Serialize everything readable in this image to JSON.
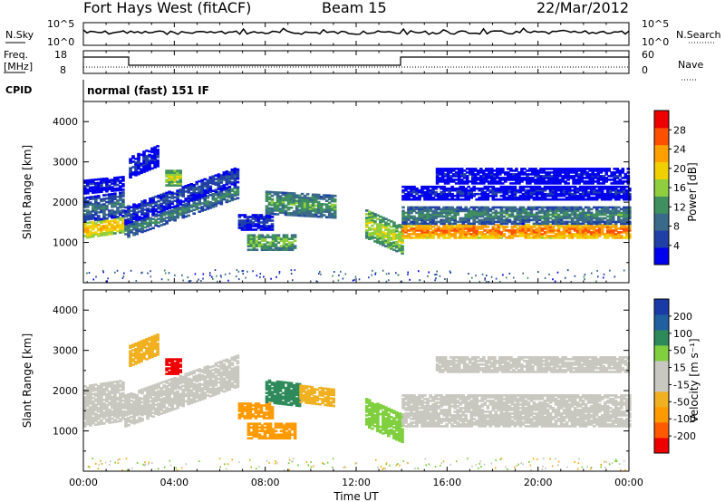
{
  "header": {
    "station": "Fort Hays West (fitACF)",
    "beam": "Beam 15",
    "date": "22/Mar/2012"
  },
  "noise_panel": {
    "left_label": "N.Sky",
    "right_label": "N.Search",
    "tick_top": "10^5",
    "tick_bottom": "10^0"
  },
  "freq_panel": {
    "left_label_line1": "Freq.",
    "left_label_line2": "[MHz]",
    "left_ticks": [
      "18",
      "8"
    ],
    "right_label": "Nave",
    "right_ticks": [
      "60",
      "0"
    ]
  },
  "cpid": {
    "label": "CPID",
    "value": "normal (fast) 151 IF"
  },
  "colors": {
    "power": [
      "#0000ee",
      "#2040a8",
      "#3a6a8a",
      "#3f8f5f",
      "#8fcf3f",
      "#f0d000",
      "#ffa000",
      "#ff5000",
      "#ee0000"
    ],
    "velocity": [
      "#ee0000",
      "#ff5a00",
      "#ff9a00",
      "#f0b020",
      "#c8c8c0",
      "#c8c8c0",
      "#7fcf3f",
      "#2e8a5a",
      "#2060a0",
      "#1a3aa8"
    ]
  },
  "chart_data": [
    {
      "type": "heatmap",
      "name_panel": "power",
      "ylabel": "Slant Range [km]",
      "ylim": [
        0,
        4500
      ],
      "yticks": [
        "1000",
        "2000",
        "3000",
        "4000"
      ],
      "xlim_hours": [
        0,
        24
      ],
      "colorbar_label": "Power [dB]",
      "colorbar_ticks": [
        "4",
        "8",
        "12",
        "16",
        "20",
        "24",
        "28"
      ],
      "colorbar_range": [
        0,
        32
      ],
      "bands": [
        {
          "t0": 0.0,
          "t1": 1.8,
          "r_lo": 1100,
          "r_hi": 1500,
          "rise": 150,
          "level": 22
        },
        {
          "t0": 0.0,
          "t1": 1.8,
          "r_lo": 1500,
          "r_hi": 2100,
          "rise": 150,
          "level": 10
        },
        {
          "t0": 0.0,
          "t1": 1.8,
          "r_lo": 2200,
          "r_hi": 2550,
          "rise": 100,
          "level": 4
        },
        {
          "t0": 1.8,
          "t1": 6.8,
          "r_lo": 1100,
          "r_hi": 1450,
          "rise": 1000,
          "level": 12
        },
        {
          "t0": 1.8,
          "t1": 6.8,
          "r_lo": 1450,
          "r_hi": 1900,
          "rise": 1000,
          "level": 7
        },
        {
          "t0": 2.0,
          "t1": 3.3,
          "r_lo": 2600,
          "r_hi": 3100,
          "rise": 300,
          "level": 5
        },
        {
          "t0": 3.6,
          "t1": 4.3,
          "r_lo": 2400,
          "r_hi": 2800,
          "rise": 0,
          "level": 18
        },
        {
          "t0": 7.2,
          "t1": 9.3,
          "r_lo": 800,
          "r_hi": 1200,
          "rise": 0,
          "level": 16
        },
        {
          "t0": 6.8,
          "t1": 8.3,
          "r_lo": 1300,
          "r_hi": 1700,
          "rise": 0,
          "level": 6
        },
        {
          "t0": 8.0,
          "t1": 11.0,
          "r_lo": 1700,
          "r_hi": 2250,
          "rise": -100,
          "level": 14
        },
        {
          "t0": 12.4,
          "t1": 14.0,
          "r_lo": 1100,
          "r_hi": 1800,
          "rise": -400,
          "level": 18
        },
        {
          "t0": 14.0,
          "t1": 24.0,
          "r_lo": 1100,
          "r_hi": 1450,
          "rise": 0,
          "level": 26
        },
        {
          "t0": 14.0,
          "t1": 24.0,
          "r_lo": 1450,
          "r_hi": 1900,
          "rise": 0,
          "level": 12
        },
        {
          "t0": 14.0,
          "t1": 24.0,
          "r_lo": 2050,
          "r_hi": 2400,
          "rise": 0,
          "level": 4
        },
        {
          "t0": 15.5,
          "t1": 24.0,
          "r_lo": 2450,
          "r_hi": 2850,
          "rise": 0,
          "level": 3
        }
      ]
    },
    {
      "type": "heatmap",
      "name_panel": "velocity",
      "ylabel": "Slant Range [km]",
      "ylim": [
        0,
        4500
      ],
      "yticks": [
        "1000",
        "2000",
        "3000",
        "4000"
      ],
      "xlim_hours": [
        0,
        24
      ],
      "xticks": [
        "00:00",
        "04:00",
        "08:00",
        "12:00",
        "16:00",
        "20:00",
        "00:00"
      ],
      "xlabel": "Time UT",
      "colorbar_label": "Velocity [m s⁻¹]",
      "colorbar_ticks": [
        "-200",
        "-100",
        "-50",
        "-15",
        "15",
        "50",
        "100",
        "200"
      ],
      "bands": [
        {
          "t0": 0.0,
          "t1": 1.8,
          "r_lo": 1100,
          "r_hi": 2100,
          "rise": 150,
          "level": 0
        },
        {
          "t0": 1.8,
          "t1": 6.8,
          "r_lo": 1100,
          "r_hi": 1900,
          "rise": 1000,
          "level": 0
        },
        {
          "t0": 2.0,
          "t1": 3.3,
          "r_lo": 2600,
          "r_hi": 3100,
          "rise": 300,
          "level": -40
        },
        {
          "t0": 3.6,
          "t1": 4.3,
          "r_lo": 2400,
          "r_hi": 2800,
          "rise": 0,
          "level": -250
        },
        {
          "t0": 7.2,
          "t1": 9.3,
          "r_lo": 800,
          "r_hi": 1200,
          "rise": 0,
          "level": -60
        },
        {
          "t0": 6.8,
          "t1": 8.3,
          "r_lo": 1300,
          "r_hi": 1700,
          "rise": 0,
          "level": -60
        },
        {
          "t0": 8.0,
          "t1": 9.5,
          "r_lo": 1700,
          "r_hi": 2250,
          "rise": -100,
          "level": 60
        },
        {
          "t0": 9.5,
          "t1": 11.0,
          "r_lo": 1700,
          "r_hi": 2150,
          "rise": -100,
          "level": -40
        },
        {
          "t0": 12.4,
          "t1": 14.0,
          "r_lo": 1100,
          "r_hi": 1800,
          "rise": -400,
          "level": 30
        },
        {
          "t0": 14.0,
          "t1": 24.0,
          "r_lo": 1100,
          "r_hi": 1900,
          "rise": 0,
          "level": 0
        },
        {
          "t0": 15.5,
          "t1": 24.0,
          "r_lo": 2450,
          "r_hi": 2850,
          "rise": 0,
          "level": 0
        }
      ]
    }
  ]
}
